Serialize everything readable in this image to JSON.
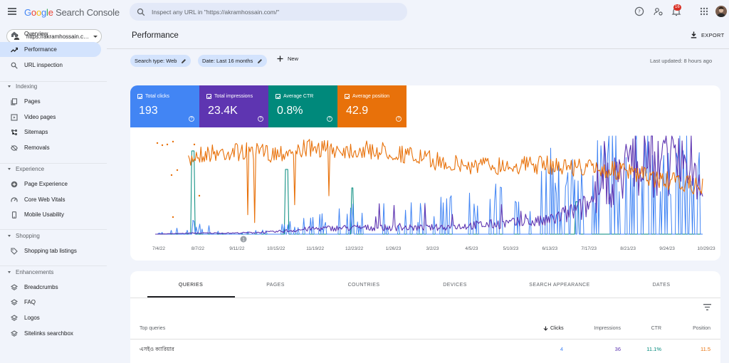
{
  "app": {
    "logo": {
      "g": "G",
      "o1": "o",
      "o2": "o",
      "g2": "g",
      "l": "l",
      "e": "e",
      "rest": "Search Console"
    },
    "search_placeholder": "Inspect any URL in \"https://akramhossain.com/\"",
    "notification_count": "16",
    "icons": [
      "menu-icon",
      "search-icon",
      "help-icon",
      "manage-users-icon",
      "bell-icon",
      "apps-grid-icon"
    ]
  },
  "sidebar": {
    "property": "https://akramhossain.com/",
    "items_top": [
      {
        "label": "Overview",
        "icon": "home-icon"
      },
      {
        "label": "Performance",
        "icon": "trending-icon",
        "active": true
      },
      {
        "label": "URL inspection",
        "icon": "search-icon"
      }
    ],
    "sections": [
      {
        "title": "Indexing",
        "items": [
          {
            "label": "Pages",
            "icon": "pages-icon"
          },
          {
            "label": "Video pages",
            "icon": "video-icon"
          },
          {
            "label": "Sitemaps",
            "icon": "sitemap-icon"
          },
          {
            "label": "Removals",
            "icon": "eye-off-icon"
          }
        ]
      },
      {
        "title": "Experience",
        "items": [
          {
            "label": "Page Experience",
            "icon": "plus-circle-icon"
          },
          {
            "label": "Core Web Vitals",
            "icon": "speed-icon"
          },
          {
            "label": "Mobile Usability",
            "icon": "phone-icon"
          }
        ]
      },
      {
        "title": "Shopping",
        "items": [
          {
            "label": "Shopping tab listings",
            "icon": "tag-icon"
          }
        ]
      },
      {
        "title": "Enhancements",
        "items": [
          {
            "label": "Breadcrumbs",
            "icon": "layers-icon"
          },
          {
            "label": "FAQ",
            "icon": "layers-icon"
          },
          {
            "label": "Logos",
            "icon": "layers-icon"
          },
          {
            "label": "Sitelinks searchbox",
            "icon": "layers-icon"
          }
        ]
      }
    ]
  },
  "main": {
    "title": "Performance",
    "export_label": "EXPORT",
    "filters": [
      {
        "label": "Search type: Web"
      },
      {
        "label": "Date: Last 16 months"
      }
    ],
    "new_label": "New",
    "last_updated": "Last updated: 8 hours ago"
  },
  "metrics": [
    {
      "label": "Total clicks",
      "value": "193",
      "color": "#4285f4"
    },
    {
      "label": "Total impressions",
      "value": "23.4K",
      "color": "#5e35b1"
    },
    {
      "label": "Average CTR",
      "value": "0.8%",
      "color": "#00897b"
    },
    {
      "label": "Average position",
      "value": "42.9",
      "color": "#e8710a"
    }
  ],
  "chart_data": {
    "type": "line",
    "x_ticks": [
      "7/4/22",
      "8/7/22",
      "9/11/22",
      "10/15/22",
      "11/19/22",
      "12/23/22",
      "1/26/23",
      "3/2/23",
      "4/5/23",
      "5/10/23",
      "6/13/23",
      "7/17/23",
      "8/21/23",
      "9/24/23",
      "10/29/23"
    ],
    "annotation": "1",
    "series": [
      {
        "name": "Average position",
        "color": "#e8710a",
        "scale": "position (inverted)",
        "segment_means": [
          100,
          22,
          18,
          20,
          14,
          16,
          18,
          28,
          35,
          34,
          34,
          37,
          42,
          52,
          60
        ],
        "note": "values relative; axis unlabeled"
      },
      {
        "name": "Total impressions",
        "color": "#5e35b1",
        "segment_means": [
          0,
          1,
          1,
          2,
          5,
          6,
          6,
          6,
          8,
          10,
          12,
          25,
          60,
          70,
          55
        ]
      },
      {
        "name": "Total clicks",
        "color": "#4285f4",
        "segment_means": [
          0,
          2,
          0,
          1,
          3,
          4,
          4,
          5,
          6,
          7,
          9,
          12,
          18,
          20,
          16
        ]
      },
      {
        "name": "Average CTR",
        "color": "#00897b",
        "segment_means": [
          0,
          10,
          0,
          0,
          0,
          0,
          0,
          0,
          0,
          0,
          0,
          0,
          0,
          0,
          0
        ]
      }
    ]
  },
  "table": {
    "tabs": [
      "QUERIES",
      "PAGES",
      "COUNTRIES",
      "DEVICES",
      "SEARCH APPEARANCE",
      "DATES"
    ],
    "headers": {
      "query": "Top queries",
      "clicks": "Clicks",
      "impressions": "Impressions",
      "ctr": "CTR",
      "position": "Position"
    },
    "rows": [
      {
        "query": "এসইও ক্যারিয়ার",
        "clicks": "4",
        "impressions": "36",
        "ctr": "11.1%",
        "position": "11.5"
      }
    ]
  }
}
